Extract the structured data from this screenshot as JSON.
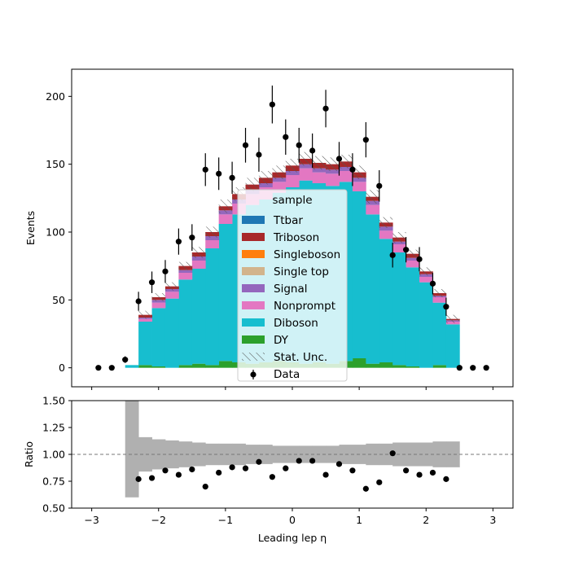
{
  "chart_data": {
    "type": "bar",
    "main": {
      "ylabel": "Events",
      "ylim": [
        -14,
        220
      ],
      "yticks": [
        0,
        50,
        100,
        150,
        200
      ],
      "bin_edges": [
        -2.5,
        -2.3,
        -2.1,
        -1.9,
        -1.7,
        -1.5,
        -1.3,
        -1.1,
        -0.9,
        -0.7,
        -0.5,
        -0.3,
        -0.1,
        0.1,
        0.3,
        0.5,
        0.7,
        0.9,
        1.1,
        1.3,
        1.5,
        1.7,
        1.9,
        2.1,
        2.3,
        2.5
      ],
      "series": [
        {
          "name": "DY",
          "color": "#2ca02c",
          "values": [
            0,
            2,
            1,
            0,
            2,
            3,
            2,
            5,
            4,
            3,
            4,
            5,
            4,
            3,
            4,
            3,
            5,
            7,
            3,
            4,
            2,
            1,
            0,
            2,
            0
          ]
        },
        {
          "name": "Diboson",
          "color": "#17becf",
          "values": [
            2,
            32,
            43,
            51,
            63,
            70,
            86,
            101,
            109,
            117,
            120,
            124,
            129,
            135,
            132,
            131,
            132,
            123,
            110,
            91,
            83,
            73,
            63,
            46,
            32
          ]
        },
        {
          "name": "Nonprompt",
          "color": "#e377c2",
          "values": [
            0,
            2,
            4,
            5,
            5,
            6,
            6,
            7,
            8,
            8,
            9,
            8,
            9,
            9,
            8,
            9,
            8,
            7,
            7,
            6,
            6,
            5,
            4,
            4,
            2
          ]
        },
        {
          "name": "Signal",
          "color": "#9467bd",
          "values": [
            0,
            1,
            2,
            2,
            2,
            3,
            3,
            3,
            3,
            3,
            3,
            3,
            3,
            3,
            3,
            3,
            3,
            3,
            3,
            3,
            2,
            2,
            2,
            1,
            1
          ]
        },
        {
          "name": "Single top",
          "color": "#d2b48c",
          "values": [
            0,
            0,
            0,
            0,
            0,
            0,
            0,
            0,
            0,
            0,
            0,
            0,
            0,
            0,
            0,
            0,
            0,
            0,
            0,
            0,
            0,
            0,
            0,
            0,
            0
          ]
        },
        {
          "name": "Singleboson",
          "color": "#ff7f0e",
          "values": [
            0,
            0,
            0,
            0,
            0,
            0,
            0,
            0,
            0,
            0,
            0,
            0,
            0,
            0,
            0,
            0,
            0,
            0,
            0,
            0,
            0,
            0,
            0,
            0,
            0
          ]
        },
        {
          "name": "Triboson",
          "color": "#a8282a",
          "values": [
            0,
            2,
            2,
            2,
            3,
            3,
            3,
            3,
            4,
            4,
            4,
            4,
            4,
            4,
            4,
            4,
            4,
            4,
            3,
            3,
            3,
            3,
            2,
            2,
            1
          ]
        },
        {
          "name": "Ttbar",
          "color": "#1f77b4",
          "values": [
            0,
            0,
            0,
            0,
            0,
            0,
            0,
            0,
            0,
            0,
            0,
            0,
            0,
            0,
            0,
            0,
            0,
            0,
            0,
            0,
            0,
            0,
            0,
            0,
            0
          ]
        }
      ],
      "stat_unc": [
        0,
        3,
        3,
        3,
        3,
        4,
        4,
        5,
        5,
        5,
        5,
        5,
        5,
        5,
        5,
        5,
        5,
        5,
        5,
        4,
        4,
        3,
        3,
        3,
        3
      ],
      "data": {
        "x": [
          -2.9,
          -2.7,
          -2.5,
          -2.3,
          -2.1,
          -1.9,
          -1.7,
          -1.5,
          -1.3,
          -1.1,
          -0.9,
          -0.7,
          -0.5,
          -0.3,
          -0.1,
          0.1,
          0.3,
          0.5,
          0.7,
          0.9,
          1.1,
          1.3,
          1.5,
          1.7,
          1.9,
          2.1,
          2.3,
          2.5,
          2.7,
          2.9
        ],
        "y": [
          0,
          0,
          6,
          49,
          63,
          71,
          93,
          96,
          146,
          143,
          140,
          164,
          157,
          194,
          170,
          164,
          160,
          191,
          154,
          146,
          168,
          134,
          83,
          87,
          80,
          62,
          45,
          0,
          0,
          0
        ]
      }
    },
    "ratio": {
      "xlabel": "Leading lep η",
      "ylabel": "Ratio",
      "ylim": [
        0.5,
        1.5
      ],
      "yticks": [
        "0.50",
        "0.75",
        "1.00",
        "1.25",
        "1.50"
      ],
      "xticks": [
        -3,
        -2,
        -1,
        0,
        1,
        2,
        3
      ],
      "xlim": [
        -3.3,
        3.3
      ],
      "reference": 1.0,
      "unc_band": [
        [
          0.6,
          1.5
        ],
        [
          0.84,
          1.16
        ],
        [
          0.86,
          1.14
        ],
        [
          0.87,
          1.13
        ],
        [
          0.88,
          1.12
        ],
        [
          0.89,
          1.11
        ],
        [
          0.9,
          1.1
        ],
        [
          0.9,
          1.1
        ],
        [
          0.9,
          1.1
        ],
        [
          0.91,
          1.09
        ],
        [
          0.91,
          1.09
        ],
        [
          0.92,
          1.08
        ],
        [
          0.92,
          1.08
        ],
        [
          0.92,
          1.08
        ],
        [
          0.92,
          1.08
        ],
        [
          0.92,
          1.08
        ],
        [
          0.91,
          1.09
        ],
        [
          0.91,
          1.09
        ],
        [
          0.9,
          1.1
        ],
        [
          0.9,
          1.1
        ],
        [
          0.89,
          1.11
        ],
        [
          0.89,
          1.11
        ],
        [
          0.89,
          1.11
        ],
        [
          0.88,
          1.12
        ],
        [
          0.88,
          1.12
        ]
      ],
      "points": {
        "x": [
          -2.3,
          -2.1,
          -1.9,
          -1.7,
          -1.5,
          -1.3,
          -1.1,
          -0.9,
          -0.7,
          -0.5,
          -0.3,
          -0.1,
          0.1,
          0.3,
          0.5,
          0.7,
          0.9,
          1.1,
          1.3,
          1.5,
          1.7,
          1.9,
          2.1,
          2.3
        ],
        "y": [
          0.77,
          0.78,
          0.85,
          0.81,
          0.86,
          0.7,
          0.83,
          0.88,
          0.87,
          0.93,
          0.79,
          0.87,
          0.94,
          0.94,
          0.81,
          0.91,
          0.85,
          0.68,
          0.74,
          1.01,
          0.85,
          0.81,
          0.83,
          0.77
        ]
      }
    },
    "legend": {
      "title": "sample",
      "placement": "center",
      "entries": [
        "Ttbar",
        "Triboson",
        "Singleboson",
        "Single top",
        "Signal",
        "Nonprompt",
        "Diboson",
        "DY",
        "Stat. Unc.",
        "Data"
      ]
    }
  }
}
